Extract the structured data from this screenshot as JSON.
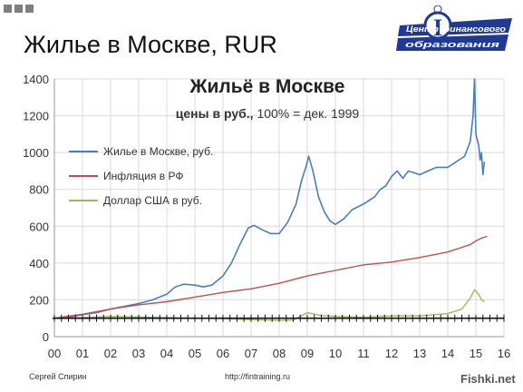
{
  "slide": {
    "title": "Жилье в Москве, RUR",
    "footer_author": "Сергей Спирин",
    "footer_url": "http://fintraining.ru",
    "watermark": "Fishki.net",
    "logo_line1": "Центр финансового",
    "logo_line2": "образования",
    "logo_letter": "I",
    "colors": {
      "squares": "#7f7f7f",
      "logo": "#1f3a93"
    }
  },
  "chart_data": {
    "type": "line",
    "title": "Жильё в Москве",
    "subtitle_bold": "цены в руб.,",
    "subtitle_rest": " 100% = дек. 1999",
    "xlabel": "",
    "ylabel": "",
    "xlim": [
      0,
      16
    ],
    "ylim": [
      0,
      1400
    ],
    "grid": true,
    "legend_position": "top-left",
    "reference_line": 100,
    "x_ticks": [
      "00",
      "01",
      "02",
      "03",
      "04",
      "05",
      "06",
      "07",
      "08",
      "09",
      "10",
      "11",
      "12",
      "13",
      "14",
      "15",
      "16"
    ],
    "y_ticks": [
      "0",
      "200",
      "400",
      "600",
      "800",
      "1000",
      "1200",
      "1400"
    ],
    "series": [
      {
        "name": "Жилье в Москве, руб.",
        "color": "#4a7ebb",
        "points": [
          [
            0,
            100
          ],
          [
            0.5,
            105
          ],
          [
            1,
            120
          ],
          [
            1.5,
            130
          ],
          [
            2,
            150
          ],
          [
            2.5,
            165
          ],
          [
            3,
            180
          ],
          [
            3.5,
            200
          ],
          [
            4,
            230
          ],
          [
            4.3,
            270
          ],
          [
            4.6,
            285
          ],
          [
            5,
            280
          ],
          [
            5.3,
            270
          ],
          [
            5.6,
            280
          ],
          [
            6,
            330
          ],
          [
            6.3,
            400
          ],
          [
            6.6,
            500
          ],
          [
            6.9,
            590
          ],
          [
            7.1,
            605
          ],
          [
            7.4,
            580
          ],
          [
            7.7,
            560
          ],
          [
            8,
            560
          ],
          [
            8.3,
            620
          ],
          [
            8.6,
            720
          ],
          [
            8.8,
            850
          ],
          [
            8.95,
            920
          ],
          [
            9.05,
            980
          ],
          [
            9.2,
            900
          ],
          [
            9.4,
            760
          ],
          [
            9.6,
            680
          ],
          [
            9.8,
            630
          ],
          [
            10,
            610
          ],
          [
            10.3,
            640
          ],
          [
            10.6,
            690
          ],
          [
            11,
            720
          ],
          [
            11.4,
            760
          ],
          [
            11.6,
            800
          ],
          [
            11.8,
            820
          ],
          [
            12,
            870
          ],
          [
            12.2,
            900
          ],
          [
            12.4,
            860
          ],
          [
            12.6,
            900
          ],
          [
            13,
            880
          ],
          [
            13.3,
            900
          ],
          [
            13.6,
            920
          ],
          [
            14,
            920
          ],
          [
            14.3,
            950
          ],
          [
            14.6,
            980
          ],
          [
            14.8,
            1060
          ],
          [
            14.9,
            1200
          ],
          [
            14.95,
            1400
          ],
          [
            15,
            1100
          ],
          [
            15.1,
            1040
          ],
          [
            15.15,
            960
          ],
          [
            15.2,
            1000
          ],
          [
            15.25,
            880
          ],
          [
            15.3,
            950
          ]
        ]
      },
      {
        "name": "Инфляция в РФ",
        "color": "#c0504d",
        "points": [
          [
            0,
            100
          ],
          [
            1,
            122
          ],
          [
            2,
            150
          ],
          [
            3,
            173
          ],
          [
            4,
            190
          ],
          [
            5,
            215
          ],
          [
            6,
            240
          ],
          [
            7,
            260
          ],
          [
            8,
            290
          ],
          [
            9,
            330
          ],
          [
            10,
            360
          ],
          [
            11,
            390
          ],
          [
            12,
            405
          ],
          [
            13,
            430
          ],
          [
            14,
            460
          ],
          [
            14.8,
            500
          ],
          [
            15,
            520
          ],
          [
            15.2,
            535
          ],
          [
            15.4,
            545
          ]
        ]
      },
      {
        "name": "Доллар США в руб.",
        "color": "#9bbb59",
        "points": [
          [
            0,
            100
          ],
          [
            1,
            103
          ],
          [
            2,
            110
          ],
          [
            3,
            107
          ],
          [
            4,
            103
          ],
          [
            5,
            100
          ],
          [
            6,
            98
          ],
          [
            7,
            92
          ],
          [
            8,
            88
          ],
          [
            8.5,
            90
          ],
          [
            9,
            130
          ],
          [
            9.5,
            115
          ],
          [
            10,
            110
          ],
          [
            11,
            105
          ],
          [
            12,
            113
          ],
          [
            13,
            113
          ],
          [
            14,
            125
          ],
          [
            14.5,
            150
          ],
          [
            14.8,
            210
          ],
          [
            14.95,
            255
          ],
          [
            15.1,
            230
          ],
          [
            15.2,
            200
          ],
          [
            15.3,
            190
          ]
        ]
      }
    ]
  }
}
